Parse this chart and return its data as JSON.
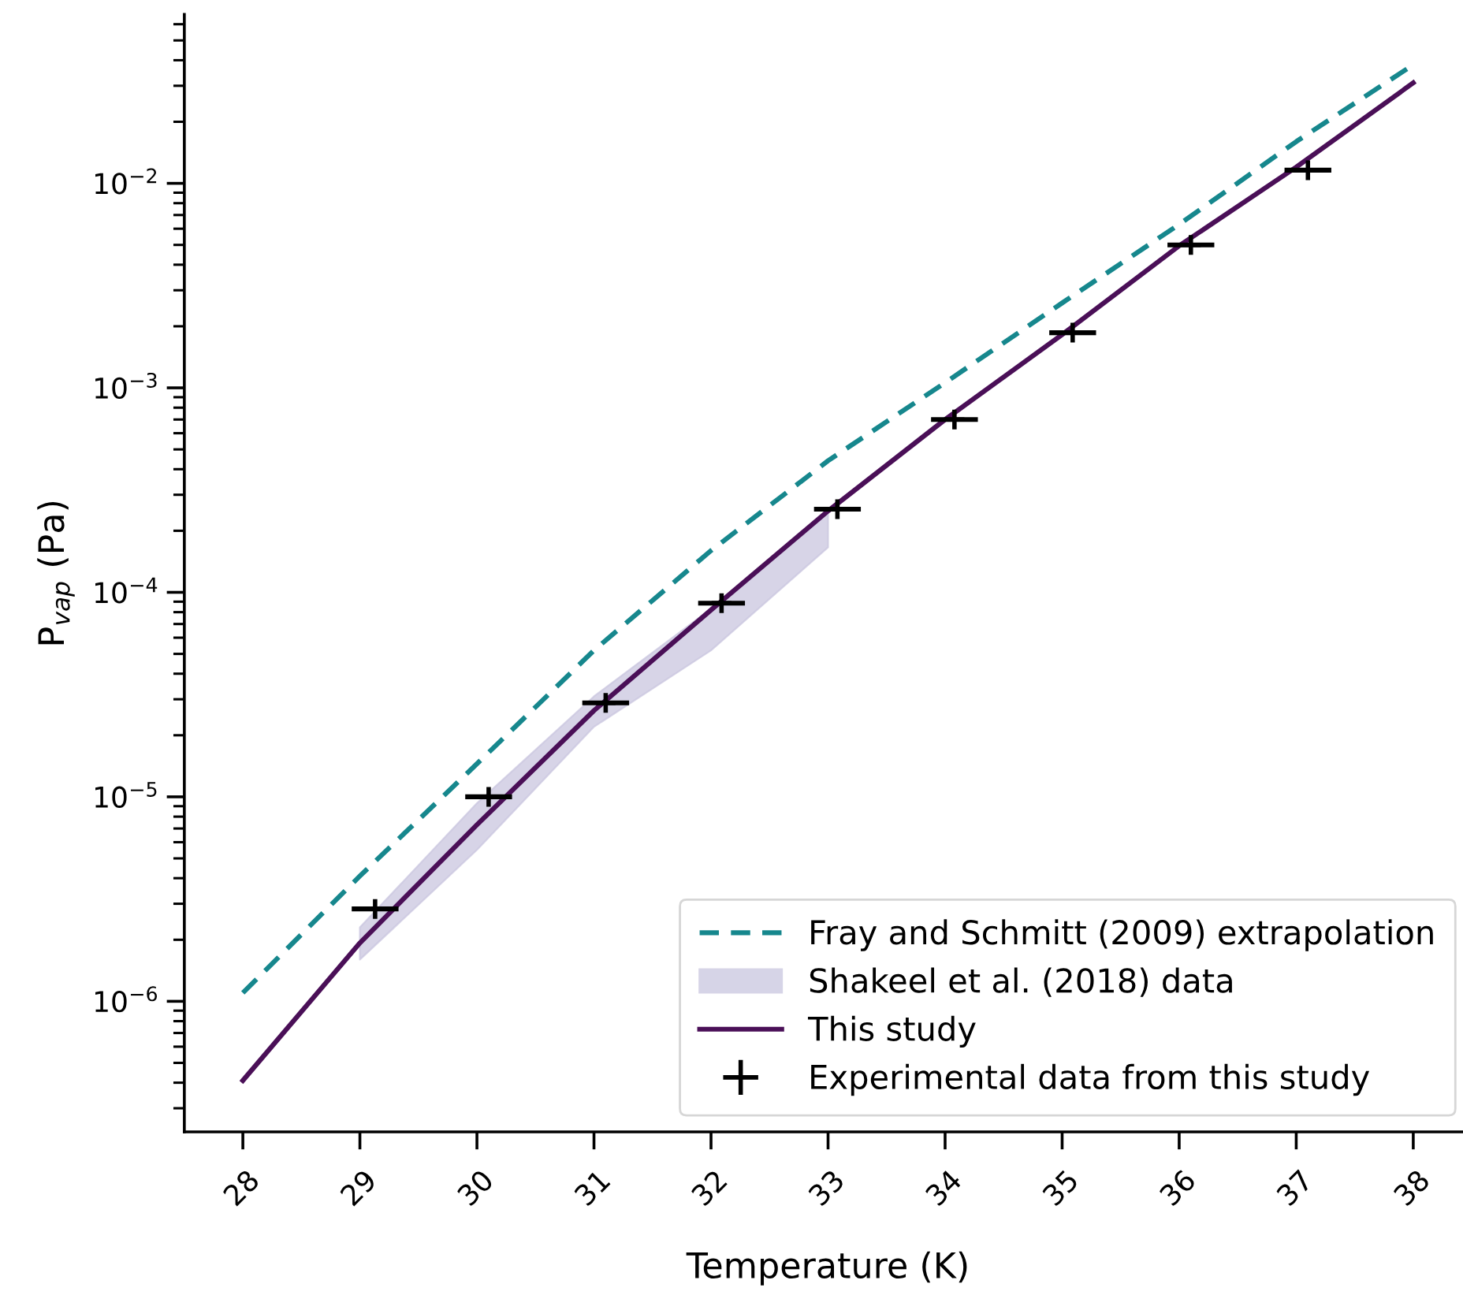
{
  "chart_data": {
    "type": "line",
    "xlabel": "Temperature (K)",
    "ylabel": "P$_{vap}$ (Pa)",
    "log": "y",
    "xlim": [
      27.5,
      38.5
    ],
    "xticks": [
      28,
      29,
      30,
      31,
      32,
      33,
      34,
      35,
      36,
      37,
      38
    ],
    "ylim": [
      2.3e-07,
      0.067
    ],
    "yticks": [
      {
        "value": 1e-06,
        "label": "10$^{−6}$"
      },
      {
        "value": 1e-05,
        "label": "10$^{−5}$"
      },
      {
        "value": 0.0001,
        "label": "10$^{−4}$"
      },
      {
        "value": 0.001,
        "label": "10$^{−3}$"
      },
      {
        "value": 0.01,
        "label": "10$^{−2}$"
      }
    ],
    "grid": false,
    "legend": "bottom right",
    "marker": "none",
    "series": [
      {
        "name": "Fray and Schmitt (2009) extrapolation",
        "line_style": "dashed",
        "color": "#16878d",
        "x": [
          28,
          29,
          30,
          31,
          32,
          33,
          34,
          35,
          36,
          37,
          38
        ],
        "values": [
          1.1e-06,
          4.1e-06,
          1.45e-05,
          5.2e-05,
          0.00016,
          0.00044,
          0.00106,
          0.0026,
          0.0063,
          0.016,
          0.038
        ]
      },
      {
        "name": "Shakeel et al. (2018) data",
        "type": "area",
        "color": "#c9c6df",
        "x": [
          29,
          30,
          31,
          32,
          33
        ],
        "values": [
          null,
          null,
          null,
          null,
          null
        ],
        "lower": [
          1.6e-06,
          5.5e-06,
          2.2e-05,
          5.2e-05,
          0.000166
        ],
        "upper": [
          2.3e-06,
          9.3e-06,
          3.1e-05,
          8.3e-05,
          0.00025
        ]
      },
      {
        "name": "This study",
        "line_style": "solid",
        "color": "#4a0f57",
        "x": [
          28,
          29,
          30,
          31,
          32,
          33,
          34,
          35,
          36,
          37,
          38
        ],
        "values": [
          4.1e-07,
          1.93e-06,
          7.3e-06,
          2.64e-05,
          8.2e-05,
          0.00025,
          0.0007,
          0.00182,
          0.00495,
          0.012,
          0.031
        ]
      },
      {
        "name": "Experimental data from this study",
        "type": "scatter",
        "marker": "cross",
        "color": "#000000",
        "x": [
          29.13,
          30.1,
          31.1,
          32.09,
          33.08,
          34.08,
          35.09,
          36.1,
          37.1
        ],
        "values": [
          2.83e-06,
          1e-05,
          2.88e-05,
          8.85e-05,
          0.000255,
          0.0007,
          0.00186,
          0.005,
          0.0116
        ],
        "xerrors": [
          0.2,
          0.2,
          0.2,
          0.2,
          0.2,
          0.2,
          0.2,
          0.2,
          0.2
        ]
      }
    ]
  }
}
